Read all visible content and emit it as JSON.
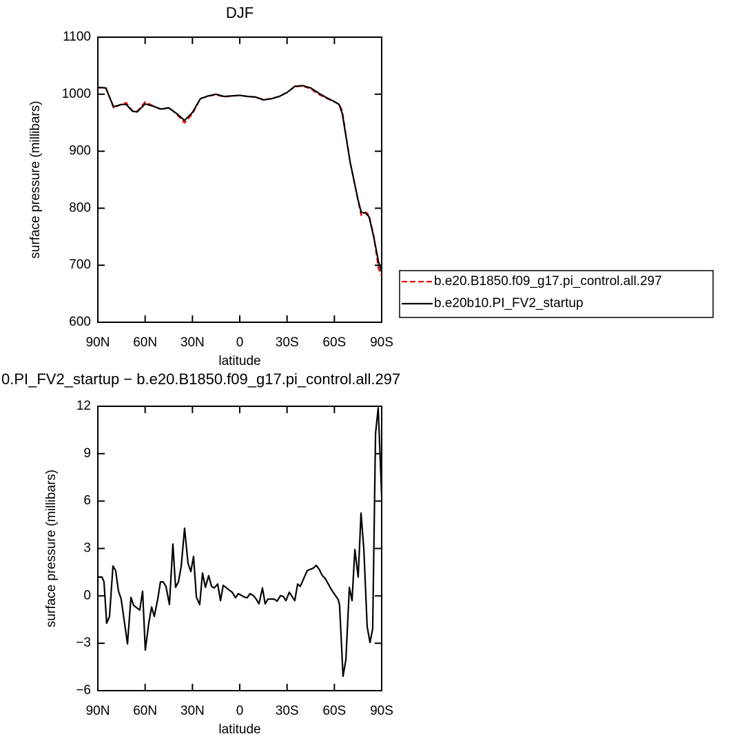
{
  "chart_data": [
    {
      "type": "line",
      "title": "DJF",
      "xlabel": "latitude",
      "ylabel": "surface pressure (millibars)",
      "x": [
        90,
        85,
        80,
        75,
        72,
        68,
        65,
        60,
        55,
        50,
        45,
        40,
        35,
        30,
        25,
        20,
        15,
        10,
        5,
        0,
        -5,
        -10,
        -15,
        -20,
        -25,
        -30,
        -35,
        -40,
        -45,
        -50,
        -55,
        -60,
        -63,
        -65,
        -70,
        -75,
        -77,
        -80,
        -82,
        -85,
        -88,
        -90
      ],
      "series": [
        {
          "name": "b.e20.B1850.f09_g17.pi_control.all.297",
          "color": "#e00000",
          "style": "dashed",
          "values": [
            1010.8,
            1012.5,
            976.2,
            982.2,
            985,
            970.4,
            969.9,
            986.4,
            979.7,
            973.1,
            976.5,
            965.1,
            949.7,
            965.5,
            992.5,
            996.5,
            999.3,
            995.3,
            996.8,
            997.9,
            996.1,
            995.2,
            990.5,
            992.2,
            996,
            1003.3,
            1013.3,
            1014.4,
            1009.3,
            1000.1,
            992.9,
            986.6,
            982.6,
            971,
            880.5,
            813.8,
            787.8,
            793,
            787.9,
            751,
            694.1,
            681.7
          ]
        },
        {
          "name": "b.e20b10.PI_FV2_startup",
          "color": "#000000",
          "style": "solid",
          "values": [
            1012,
            1011,
            978,
            982,
            982,
            970,
            969,
            983,
            979,
            974,
            976,
            966,
            954,
            968,
            992,
            997,
            1000,
            996,
            997,
            998,
            996,
            995,
            990,
            992,
            996,
            1003,
            1014,
            1015,
            1011,
            1002,
            994,
            987,
            982,
            966,
            881,
            815,
            793,
            791,
            785,
            749,
            706,
            688
          ]
        }
      ],
      "xlim": [
        90,
        -90
      ],
      "xticks": [
        {
          "value": 90,
          "label": "90N"
        },
        {
          "value": 60,
          "label": "60N"
        },
        {
          "value": 30,
          "label": "30N"
        },
        0,
        {
          "value": -30,
          "label": "30S"
        },
        {
          "value": -60,
          "label": "60S"
        },
        {
          "value": -90,
          "label": "90S"
        }
      ],
      "ylim": [
        600,
        1100
      ],
      "yticks": [
        600,
        700,
        800,
        900,
        1000,
        1100
      ],
      "legend": "right"
    },
    {
      "type": "line",
      "title": "0.PI_FV2_startup − b.e20.B1850.f09_g17.pi_control.all.297",
      "xlabel": "latitude",
      "ylabel": "surface pressure (millibars)",
      "x": [
        90,
        87.4,
        86.1,
        84.4,
        82.6,
        80.4,
        78.7,
        76.9,
        75.2,
        71.2,
        69.0,
        67.3,
        63.4,
        61.6,
        59.9,
        57.7,
        55.9,
        54.2,
        52.0,
        50.3,
        48.5,
        46.8,
        44.6,
        42.4,
        40.7,
        38.9,
        37.1,
        35.0,
        32.8,
        31.0,
        29.3,
        27.5,
        25.4,
        23.6,
        21.8,
        19.7,
        17.9,
        16.2,
        14.0,
        12.2,
        10.5,
        6.6,
        4.8,
        2.7,
        0.9,
        -3.0,
        -4.7,
        -6.5,
        -8.7,
        -10.4,
        -12.2,
        -14.4,
        -16.1,
        -17.9,
        -21.8,
        -23.6,
        -25.8,
        -27.5,
        -29.3,
        -31.4,
        -34.9,
        -36.7,
        -38.4,
        -42.8,
        -46.7,
        -48.5,
        -50.2,
        -52.4,
        -54.2,
        -58.1,
        -62.5,
        -63.3,
        -65.5,
        -67.3,
        -69.5,
        -71.2,
        -73.0,
        -75.1,
        -76.9,
        -78.7,
        -80.8,
        -82.6,
        -84.3,
        -86.1,
        -87.8,
        -90.0
      ],
      "values": [
        1.19,
        1.19,
        0.9,
        -1.73,
        -1.3,
        1.89,
        1.6,
        0.3,
        -0.2,
        -3.04,
        -0.1,
        -0.6,
        -0.9,
        0.3,
        -3.43,
        -1.73,
        -0.7,
        -1.3,
        -0.2,
        0.88,
        0.88,
        0.6,
        -0.55,
        3.28,
        0.54,
        0.88,
        1.89,
        4.28,
        2.06,
        1.54,
        2.5,
        -0.08,
        -0.55,
        1.45,
        0.54,
        1.28,
        0.6,
        0.5,
        0.75,
        -0.3,
        0.67,
        0.36,
        0.23,
        -0.12,
        0.14,
        -0.08,
        -0.12,
        0.14,
        0.01,
        -0.2,
        -0.5,
        0.5,
        -0.5,
        -0.2,
        -0.2,
        -0.34,
        0.01,
        -0.03,
        -0.3,
        0.23,
        -0.3,
        0.75,
        0.6,
        1.6,
        1.76,
        1.93,
        1.71,
        1.28,
        1.1,
        0.4,
        -0.25,
        -0.6,
        -5.09,
        -4.04,
        0.54,
        -0.3,
        2.93,
        1.19,
        5.24,
        2.93,
        -1.95,
        -2.95,
        -2.08,
        10.26,
        11.9,
        6.33
      ],
      "color": "#000000",
      "xlim": [
        90,
        -90
      ],
      "xticks": [
        {
          "value": 90,
          "label": "90N"
        },
        {
          "value": 60,
          "label": "60N"
        },
        {
          "value": 30,
          "label": "30N"
        },
        0,
        {
          "value": -30,
          "label": "30S"
        },
        {
          "value": -60,
          "label": "60S"
        },
        {
          "value": -90,
          "label": "90S"
        }
      ],
      "ylim": [
        -6,
        12
      ],
      "yticks": [
        {
          "value": -6,
          "label": "−6"
        },
        {
          "value": -3,
          "label": "−3"
        },
        0,
        3,
        6,
        9,
        12
      ]
    }
  ]
}
